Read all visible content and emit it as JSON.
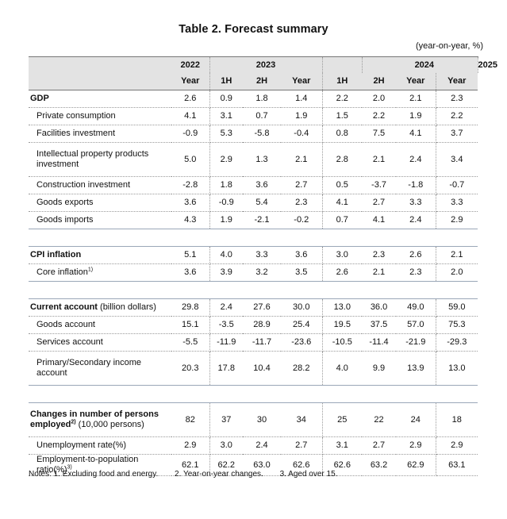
{
  "title": "Table 2. Forecast summary",
  "unit": "(year-on-year, %)",
  "header": {
    "years": [
      "2022",
      "2023",
      "2024",
      "2025"
    ],
    "periods": [
      "Year",
      "1H",
      "2H",
      "Year",
      "1H",
      "2H",
      "Year",
      "Year"
    ]
  },
  "sections": [
    {
      "rows": [
        {
          "label": "GDP",
          "bold": true,
          "values": [
            "2.6",
            "0.9",
            "1.8",
            "1.4",
            "2.2",
            "2.0",
            "2.1",
            "2.3"
          ]
        },
        {
          "label": "Private consumption",
          "values": [
            "4.1",
            "3.1",
            "0.7",
            "1.9",
            "1.5",
            "2.2",
            "1.9",
            "2.2"
          ]
        },
        {
          "label": "Facilities investment",
          "values": [
            "-0.9",
            "5.3",
            "-5.8",
            "-0.4",
            "0.8",
            "7.5",
            "4.1",
            "3.7"
          ]
        },
        {
          "label": "Intellectual property products investment",
          "tall": true,
          "values": [
            "5.0",
            "2.9",
            "1.3",
            "2.1",
            "2.8",
            "2.1",
            "2.4",
            "3.4"
          ]
        },
        {
          "label": "Construction investment",
          "values": [
            "-2.8",
            "1.8",
            "3.6",
            "2.7",
            "0.5",
            "-3.7",
            "-1.8",
            "-0.7"
          ]
        },
        {
          "label": "Goods exports",
          "values": [
            "3.6",
            "-0.9",
            "5.4",
            "2.3",
            "4.1",
            "2.7",
            "3.3",
            "3.3"
          ]
        },
        {
          "label": "Goods imports",
          "values": [
            "4.3",
            "1.9",
            "-2.1",
            "-0.2",
            "0.7",
            "4.1",
            "2.4",
            "2.9"
          ]
        }
      ]
    },
    {
      "rows": [
        {
          "label": "CPI inflation",
          "bold": true,
          "values": [
            "5.1",
            "4.0",
            "3.3",
            "3.6",
            "3.0",
            "2.3",
            "2.6",
            "2.1"
          ]
        },
        {
          "label": "Core inflation",
          "note": "1)",
          "values": [
            "3.6",
            "3.9",
            "3.2",
            "3.5",
            "2.6",
            "2.1",
            "2.3",
            "2.0"
          ]
        }
      ]
    },
    {
      "rows": [
        {
          "label": "Current account",
          "label_suffix": " (billion dollars)",
          "bold": true,
          "values": [
            "29.8",
            "2.4",
            "27.6",
            "30.0",
            "13.0",
            "36.0",
            "49.0",
            "59.0"
          ]
        },
        {
          "label": "Goods account",
          "values": [
            "15.1",
            "-3.5",
            "28.9",
            "25.4",
            "19.5",
            "37.5",
            "57.0",
            "75.3"
          ]
        },
        {
          "label": "Services account",
          "values": [
            "-5.5",
            "-11.9",
            "-11.7",
            "-23.6",
            "-10.5",
            "-11.4",
            "-21.9",
            "-29.3"
          ]
        },
        {
          "label": "Primary/Secondary income account",
          "tall": true,
          "values": [
            "20.3",
            "17.8",
            "10.4",
            "28.2",
            "4.0",
            "9.9",
            "13.9",
            "13.0"
          ]
        }
      ]
    },
    {
      "rows": [
        {
          "label": "Changes in number of persons employed",
          "note": "2)",
          "label_suffix": " (10,000 persons)",
          "bold": true,
          "tall": true,
          "values": [
            "82",
            "37",
            "30",
            "34",
            "25",
            "22",
            "24",
            "18"
          ]
        },
        {
          "label": "Unemployment rate(%)",
          "values": [
            "2.9",
            "3.0",
            "2.4",
            "2.7",
            "3.1",
            "2.7",
            "2.9",
            "2.9"
          ]
        },
        {
          "label": "Employment-to-population ratio(%)",
          "note": "3)",
          "values": [
            "62.1",
            "62.2",
            "63.0",
            "62.6",
            "62.6",
            "63.2",
            "62.9",
            "63.1"
          ]
        }
      ]
    }
  ],
  "notes": [
    "Notes: 1. Excluding food and energy.",
    "2. Year-on-year changes.",
    "3. Aged over 15."
  ]
}
